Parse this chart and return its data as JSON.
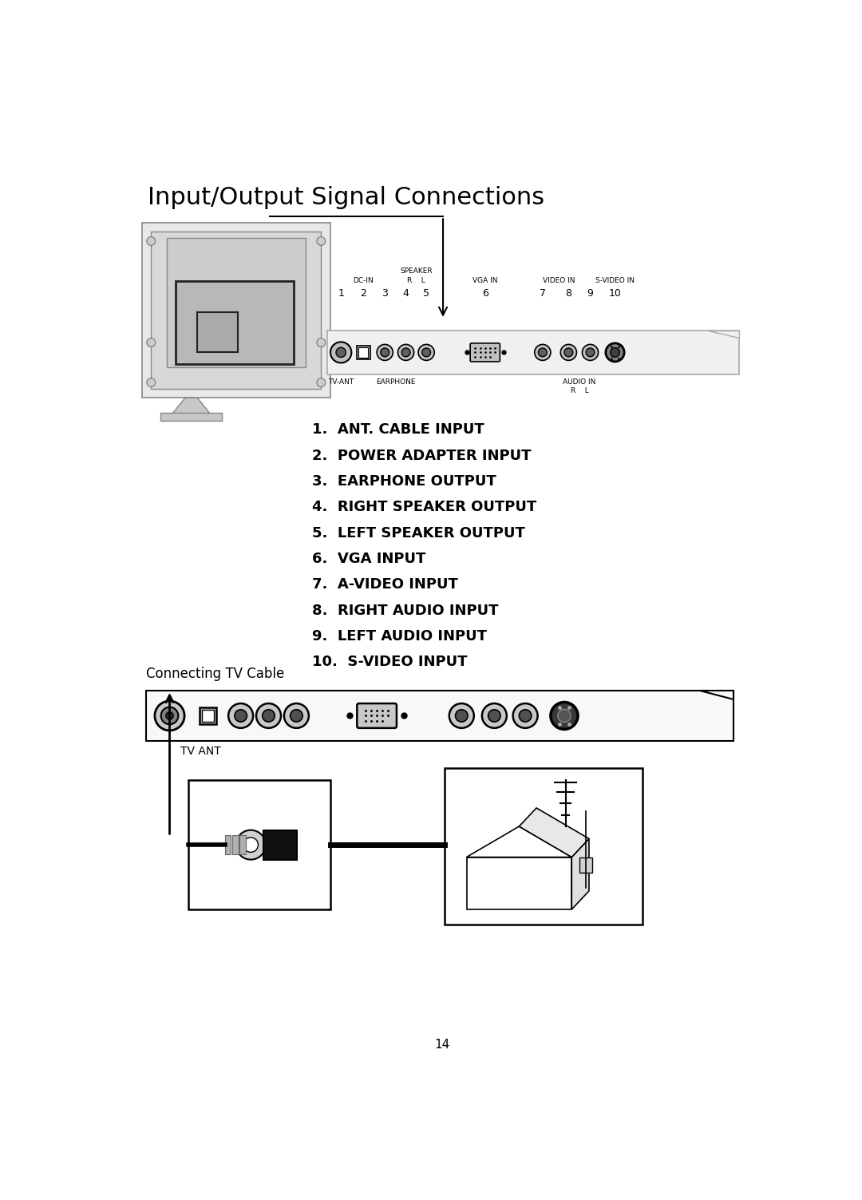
{
  "title": "Input/Output Signal Connections",
  "page_number": "14",
  "bg_color": "#ffffff",
  "items_list": [
    "1.  ANT. CABLE INPUT",
    "2.  POWER ADAPTER INPUT",
    "3.  EARPHONE OUTPUT",
    "4.  RIGHT SPEAKER OUTPUT",
    "5.  LEFT SPEAKER OUTPUT",
    "6.  VGA INPUT",
    "7.  A-VIDEO INPUT",
    "8.  RIGHT AUDIO INPUT",
    "9.  LEFT AUDIO INPUT",
    "10.  S-VIDEO INPUT"
  ],
  "connecting_tv_cable_label": "Connecting TV Cable",
  "tv_ant_label": "TV ANT"
}
